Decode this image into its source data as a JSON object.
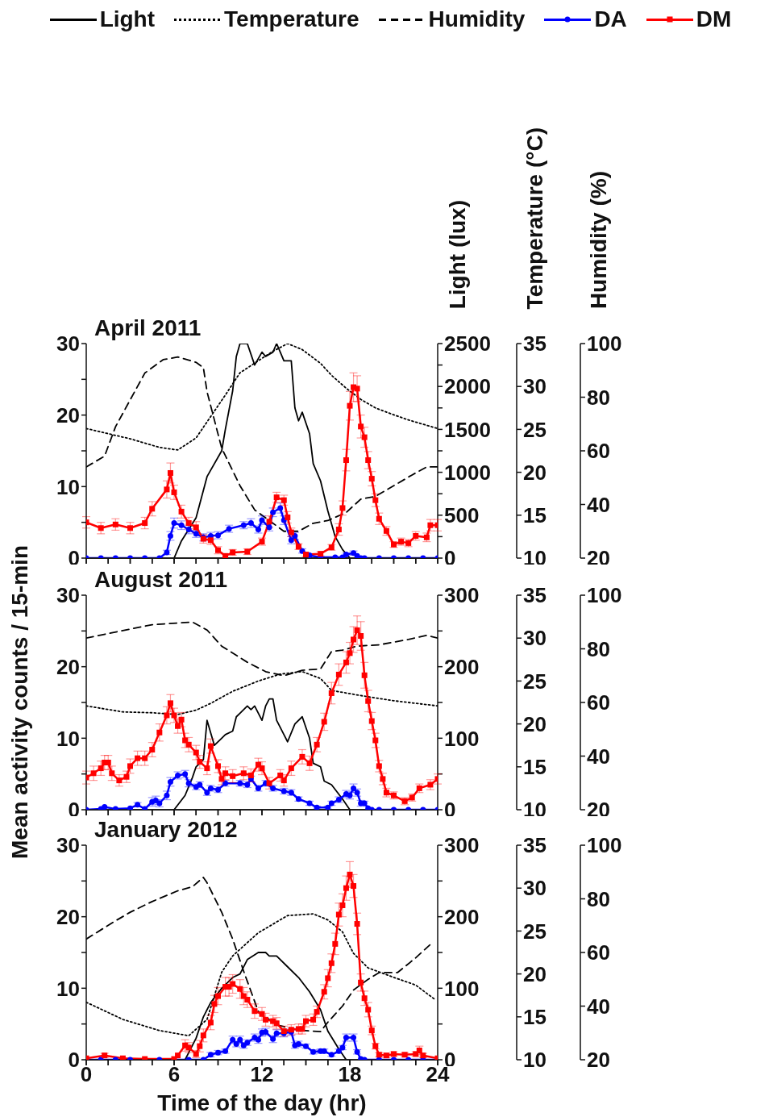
{
  "chart_data": [
    {
      "type": "line",
      "legend": "top",
      "tick_labels": "y",
      "ylabel": "Light (lux)",
      "xlim": [
        0,
        24
      ],
      "xticks": [
        0,
        {
          "value": 1.5,
          "label": null
        },
        {
          "value": 3,
          "label": null
        },
        {
          "value": 4.5,
          "label": null
        },
        {
          "value": 6,
          "label": null
        },
        {
          "value": 7.5,
          "label": null
        },
        {
          "value": 9,
          "label": null
        },
        {
          "value": 10.5,
          "label": null
        },
        {
          "value": 12,
          "label": null
        },
        {
          "value": 13.5,
          "label": null
        },
        {
          "value": 15,
          "label": null
        },
        {
          "value": 16.5,
          "label": null
        },
        {
          "value": 18,
          "label": null
        },
        {
          "value": 19.5,
          "label": null
        },
        {
          "value": 21,
          "label": null
        },
        {
          "value": 22.5,
          "label": null
        },
        {
          "value": 24,
          "label": null
        }
      ],
      "ylim": [
        0,
        2500
      ],
      "yticks": [
        0,
        {
          "value": 250,
          "label": null
        },
        500,
        {
          "value": 750,
          "label": null
        },
        1000,
        {
          "value": 1250,
          "label": null
        },
        1500,
        {
          "value": 1750,
          "label": null
        },
        2000,
        {
          "value": 2250,
          "label": null
        },
        2500
      ],
      "series": [
        {
          "name": "Light",
          "color": "#000000",
          "line_style": "solid",
          "marker": "none",
          "x": [
            6,
            6.5,
            7.5,
            8.25,
            9.25,
            9.5,
            10,
            10.25,
            10.5,
            11,
            11.5,
            12,
            12.25,
            12.75,
            13,
            13.25,
            13.5,
            14,
            14.25,
            14.5,
            14.75,
            15.25,
            15.5,
            16,
            16.5,
            17,
            17.5,
            18
          ],
          "values": [
            0,
            200,
            470,
            950,
            1250,
            1500,
            1950,
            2350,
            2500,
            2500,
            2250,
            2400,
            2350,
            2400,
            2500,
            2400,
            2300,
            2300,
            1750,
            1600,
            1700,
            1450,
            1100,
            900,
            550,
            250,
            100,
            0
          ]
        }
      ]
    },
    {
      "type": "line",
      "title": "April 2011",
      "legend": "top",
      "tick_labels": "y",
      "y2label": "Temperature (°C)",
      "y3label": "Humidity (%)",
      "xlim": [
        0,
        24
      ],
      "xticks": [
        0,
        {
          "value": 1.5,
          "label": null
        },
        {
          "value": 3,
          "label": null
        },
        {
          "value": 4.5,
          "label": null
        },
        {
          "value": 6,
          "label": null
        },
        {
          "value": 7.5,
          "label": null
        },
        {
          "value": 9,
          "label": null
        },
        {
          "value": 10.5,
          "label": null
        },
        {
          "value": 12,
          "label": null
        },
        {
          "value": 13.5,
          "label": null
        },
        {
          "value": 15,
          "label": null
        },
        {
          "value": 16.5,
          "label": null
        },
        {
          "value": 18,
          "label": null
        },
        {
          "value": 19.5,
          "label": null
        },
        {
          "value": 21,
          "label": null
        },
        {
          "value": 22.5,
          "label": null
        },
        {
          "value": 24,
          "label": null
        }
      ],
      "ylim": [
        0,
        30
      ],
      "yticks": [
        0,
        {
          "value": 5,
          "label": null
        },
        10,
        {
          "value": 15,
          "label": null
        },
        20,
        {
          "value": 25,
          "label": null
        },
        30
      ],
      "y2lim": [
        10,
        35
      ],
      "y2ticks": [
        10,
        15,
        20,
        25,
        30,
        35
      ],
      "y3lim": [
        20,
        100
      ],
      "y3ticks": [
        20,
        40,
        60,
        80,
        100
      ],
      "series": [
        {
          "name": "Temperature",
          "color": "#000000",
          "axis": "y2",
          "line_style": "dotted",
          "marker": "none",
          "x": [
            0,
            3,
            5,
            6.25,
            7.5,
            8.5,
            9.5,
            10.5,
            11.75,
            12.75,
            13.75,
            14.75,
            16,
            16.75,
            17.75,
            18.75,
            19.75,
            21,
            22,
            24
          ],
          "values": [
            25.1,
            23.9,
            22.9,
            22.6,
            24.0,
            26.5,
            29.0,
            31.6,
            33.0,
            34.1,
            35.0,
            34.3,
            32.7,
            31.3,
            29.8,
            28.5,
            27.5,
            26.7,
            26.1,
            25.1
          ]
        },
        {
          "name": "Humidity",
          "color": "#000000",
          "axis": "y3",
          "line_style": "dashed",
          "marker": "none",
          "x": [
            0,
            1.25,
            2,
            3,
            4,
            5.25,
            6.25,
            7.5,
            8,
            8.25,
            9.25,
            10.5,
            11.5,
            12.5,
            13.5,
            14.5,
            15.5,
            16.5,
            17.75,
            18.75,
            19.75,
            21,
            22.25,
            23.25,
            24
          ],
          "values": [
            54,
            58,
            69,
            79,
            89,
            94,
            95,
            93,
            91,
            82,
            61,
            47,
            38,
            34,
            30,
            30,
            33,
            34,
            37,
            42,
            43,
            47,
            51,
            54,
            54
          ]
        },
        {
          "name": "DA",
          "color": "#0000ff",
          "axis": "y",
          "line_style": "solid",
          "marker": "circle",
          "x": [
            0,
            1,
            2,
            3,
            4,
            5,
            5.5,
            5.75,
            6,
            6.5,
            7,
            7.5,
            8,
            8.5,
            9,
            9.75,
            10.75,
            11.25,
            11.75,
            12,
            12.5,
            12.75,
            13.25,
            13.5,
            14,
            14.25,
            14.75,
            15.25,
            16,
            17,
            17.5,
            17.75,
            18.25,
            18.5,
            18.75,
            19,
            20,
            21,
            22,
            23,
            24
          ],
          "values": [
            0,
            0,
            0,
            0,
            0,
            0,
            0.8,
            3.1,
            4.9,
            4.6,
            4.0,
            3.4,
            2.9,
            3.1,
            3.2,
            4.1,
            4.6,
            4.9,
            4.0,
            5.3,
            4.3,
            6.4,
            7.0,
            5.3,
            2.5,
            3.1,
            1.0,
            0.4,
            0.1,
            0.1,
            0.1,
            0.5,
            0.7,
            0.3,
            0,
            0,
            0,
            0,
            0,
            0,
            0
          ],
          "errors": [
            null,
            null,
            null,
            null,
            null,
            null,
            0.3,
            0.6,
            0.7,
            0.6,
            0.6,
            0.5,
            0.5,
            0.5,
            0.5,
            0.5,
            0.5,
            0.6,
            0.5,
            0.6,
            0.5,
            0.6,
            0.7,
            0.6,
            0.5,
            0.5,
            0.3,
            0.2,
            null,
            null,
            null,
            0.2,
            0.3,
            null,
            null,
            null,
            null,
            null,
            null,
            null,
            null
          ]
        },
        {
          "name": "DM",
          "color": "#ff0000",
          "axis": "y",
          "line_style": "solid",
          "marker": "square",
          "x": [
            0,
            1,
            2,
            3,
            4,
            4.5,
            5.5,
            5.75,
            6,
            6.5,
            7,
            7.5,
            8,
            8.5,
            9,
            9.5,
            10,
            11,
            12,
            12.5,
            13,
            13.5,
            13.75,
            14,
            14.5,
            15,
            16,
            16.75,
            17.25,
            17.5,
            17.75,
            18,
            18.25,
            18.5,
            18.75,
            19,
            19.25,
            19.5,
            19.75,
            20,
            20.5,
            21,
            21.5,
            22,
            22.5,
            23.25,
            23.5,
            24
          ],
          "values": [
            5.0,
            4.2,
            4.7,
            4.2,
            4.9,
            6.9,
            9.6,
            11.9,
            9.2,
            6.5,
            4.9,
            4.3,
            2.7,
            2.5,
            1.1,
            0.3,
            0.8,
            0.9,
            2.3,
            5.1,
            8.5,
            8.1,
            5.7,
            3.6,
            1.6,
            0.5,
            0.6,
            1.5,
            4.0,
            7.0,
            13.7,
            21.3,
            23.9,
            23.7,
            18.4,
            16.9,
            13.7,
            11.1,
            8.1,
            5.5,
            3.8,
            1.9,
            2.3,
            2.1,
            3.1,
            2.9,
            4.6,
            4.6
          ],
          "errors": [
            0.8,
            0.8,
            0.8,
            0.8,
            0.8,
            1,
            1.2,
            1.4,
            1,
            0.9,
            0.8,
            0.8,
            0.6,
            0.6,
            0.5,
            0.3,
            0.4,
            0.4,
            0.5,
            0.8,
            0.7,
            0.7,
            0.8,
            0.6,
            0.4,
            0.3,
            0.3,
            0.4,
            0.8,
            1,
            1.5,
            2,
            2,
            1.8,
            1.6,
            1.4,
            1.2,
            1,
            0.9,
            0.8,
            0.6,
            0.4,
            0.5,
            0.5,
            0.6,
            0.6,
            0.8,
            0.8
          ]
        }
      ]
    },
    {
      "type": "line",
      "tick_labels": "y",
      "xlim": [
        0,
        24
      ],
      "xticks": [
        0,
        {
          "value": 1.5,
          "label": null
        },
        {
          "value": 3,
          "label": null
        },
        {
          "value": 4.5,
          "label": null
        },
        {
          "value": 6,
          "label": null
        },
        {
          "value": 7.5,
          "label": null
        },
        {
          "value": 9,
          "label": null
        },
        {
          "value": 10.5,
          "label": null
        },
        {
          "value": 12,
          "label": null
        },
        {
          "value": 13.5,
          "label": null
        },
        {
          "value": 15,
          "label": null
        },
        {
          "value": 16.5,
          "label": null
        },
        {
          "value": 18,
          "label": null
        },
        {
          "value": 19.5,
          "label": null
        },
        {
          "value": 21,
          "label": null
        },
        {
          "value": 22.5,
          "label": null
        },
        {
          "value": 24,
          "label": null
        }
      ],
      "ylim": [
        0,
        300
      ],
      "yticks": [
        0,
        {
          "value": 50,
          "label": null
        },
        100,
        {
          "value": 150,
          "label": null
        },
        200,
        {
          "value": 250,
          "label": null
        },
        300
      ],
      "series": [
        {
          "color": "#000000",
          "line_style": "solid",
          "marker": "none",
          "x": [
            6,
            6.75,
            7.25,
            7.5,
            8,
            8.25,
            8.75,
            9.25,
            9.5,
            10,
            10.25,
            10.5,
            11,
            11.25,
            11.5,
            12,
            12.25,
            12.5,
            12.75,
            13,
            13.5,
            13.75,
            14.25,
            14.75,
            15.25,
            15.5,
            16,
            16.25,
            16.75,
            17.5,
            18
          ],
          "values": [
            0,
            20,
            45,
            60,
            70,
            125,
            90,
            100,
            105,
            110,
            130,
            135,
            145,
            140,
            145,
            125,
            145,
            155,
            155,
            125,
            105,
            95,
            120,
            130,
            100,
            65,
            60,
            40,
            35,
            15,
            0
          ]
        }
      ]
    },
    {
      "type": "line",
      "title": "August 2011",
      "tick_labels": "y",
      "ylabel": "Mean activity counts / 15-min",
      "xlim": [
        0,
        24
      ],
      "xticks": [
        0,
        {
          "value": 1.5,
          "label": null
        },
        {
          "value": 3,
          "label": null
        },
        {
          "value": 4.5,
          "label": null
        },
        {
          "value": 6,
          "label": null
        },
        {
          "value": 7.5,
          "label": null
        },
        {
          "value": 9,
          "label": null
        },
        {
          "value": 10.5,
          "label": null
        },
        {
          "value": 12,
          "label": null
        },
        {
          "value": 13.5,
          "label": null
        },
        {
          "value": 15,
          "label": null
        },
        {
          "value": 16.5,
          "label": null
        },
        {
          "value": 18,
          "label": null
        },
        {
          "value": 19.5,
          "label": null
        },
        {
          "value": 21,
          "label": null
        },
        {
          "value": 22.5,
          "label": null
        },
        {
          "value": 24,
          "label": null
        }
      ],
      "ylim": [
        0,
        30
      ],
      "yticks": [
        0,
        {
          "value": 5,
          "label": null
        },
        10,
        {
          "value": 15,
          "label": null
        },
        20,
        {
          "value": 25,
          "label": null
        },
        30
      ],
      "y2lim": [
        10,
        35
      ],
      "y2ticks": [
        10,
        15,
        20,
        25,
        30,
        35
      ],
      "y3lim": [
        20,
        100
      ],
      "y3ticks": [
        20,
        40,
        60,
        80,
        100
      ],
      "series": [
        {
          "color": "#000000",
          "axis": "y2",
          "line_style": "dotted",
          "marker": "none",
          "x": [
            0,
            2.5,
            4.5,
            6.25,
            7.5,
            8.5,
            10,
            11.75,
            13.25,
            14.75,
            16,
            16.75,
            17.75,
            18.75,
            21,
            24
          ],
          "values": [
            22.1,
            21.4,
            21.3,
            21.1,
            21.6,
            22.4,
            23.8,
            25.0,
            25.8,
            26.1,
            25.3,
            23.9,
            23.6,
            23.3,
            22.7,
            22.1
          ]
        },
        {
          "color": "#000000",
          "axis": "y3",
          "line_style": "dashed",
          "marker": "none",
          "x": [
            0,
            1.75,
            4.5,
            7.25,
            8.25,
            9.25,
            11,
            12.25,
            13.5,
            14.75,
            16,
            16.75,
            17.5,
            18.5,
            20,
            22,
            23.25,
            24
          ],
          "values": [
            84,
            86,
            89,
            90,
            87,
            81,
            75,
            71.5,
            70,
            72,
            72.5,
            79,
            79.5,
            81,
            81.5,
            83.5,
            85,
            84
          ]
        },
        {
          "color": "#0000ff",
          "axis": "y",
          "line_style": "solid",
          "marker": "circle",
          "x": [
            0,
            1,
            1.25,
            2,
            3,
            3.5,
            4,
            4.5,
            4.75,
            5,
            5.5,
            5.75,
            6.25,
            6.75,
            7,
            7.5,
            7.75,
            8.25,
            8.5,
            9,
            9.5,
            10.5,
            11,
            11.25,
            11.75,
            12.25,
            12.75,
            13.5,
            14,
            14.5,
            15.25,
            15.75,
            16.5,
            16.75,
            17.25,
            17.75,
            18,
            18.25,
            18.5,
            18.75,
            19,
            19.25,
            19.5,
            20,
            21,
            22,
            23,
            24
          ],
          "values": [
            0,
            0.1,
            0.4,
            0.1,
            0.2,
            0.7,
            0.1,
            1.1,
            1.3,
            0.9,
            2.0,
            3.9,
            4.8,
            5.0,
            3.7,
            3.2,
            3.5,
            2.4,
            3.0,
            2.8,
            3.7,
            3.7,
            3.5,
            4.3,
            3.0,
            3.7,
            3.0,
            2.6,
            2.4,
            1.5,
            0.9,
            0.3,
            0.3,
            0.9,
            1.4,
            2.2,
            2.0,
            3.0,
            2.4,
            0.9,
            0.9,
            0.2,
            0,
            0,
            0,
            0,
            0,
            0
          ],
          "errors": [
            null,
            null,
            null,
            null,
            null,
            0.3,
            null,
            0.6,
            0.6,
            0.5,
            0.6,
            0.6,
            0.5,
            0.5,
            0.5,
            0.4,
            0.4,
            0.4,
            0.4,
            0.4,
            0.4,
            0.4,
            0.4,
            0.4,
            0.4,
            0.4,
            0.4,
            0.4,
            0.4,
            0.3,
            0.3,
            0.2,
            0.2,
            0.3,
            0.4,
            0.5,
            0.5,
            0.6,
            0.5,
            0.4,
            0.3,
            null,
            null,
            null,
            null,
            null,
            null,
            null
          ]
        },
        {
          "color": "#ff0000",
          "axis": "y",
          "line_style": "solid",
          "marker": "square",
          "x": [
            0,
            0.5,
            1,
            1.25,
            1.5,
            1.75,
            2.25,
            2.75,
            3,
            3.5,
            4,
            4.5,
            5,
            5.5,
            5.75,
            6,
            6.25,
            6.5,
            6.75,
            7,
            7.5,
            7.75,
            8.25,
            8.5,
            9,
            9.25,
            9.5,
            10,
            10.75,
            11.25,
            11.75,
            12,
            12.5,
            13.25,
            13.5,
            14,
            14.75,
            15.25,
            15.75,
            16.25,
            16.75,
            17.25,
            17.75,
            18,
            18.25,
            18.5,
            18.75,
            19,
            19.25,
            19.5,
            19.75,
            20,
            20.25,
            20.5,
            21,
            21.75,
            22.25,
            22.75,
            23.5,
            24
          ],
          "values": [
            4.5,
            5.1,
            5.8,
            6.6,
            6.6,
            5.1,
            4.1,
            4.6,
            6.1,
            7.2,
            7.2,
            8.4,
            10.8,
            13.2,
            14.9,
            13.2,
            11.7,
            12.6,
            9.7,
            9.1,
            8.0,
            6.7,
            5.8,
            8.9,
            6.1,
            4.3,
            5.1,
            4.7,
            5.1,
            4.8,
            6.3,
            5.8,
            3.7,
            4.8,
            4.1,
            5.8,
            7.4,
            6.5,
            9.1,
            12.3,
            16.3,
            18.9,
            20.6,
            21.9,
            23.8,
            25.1,
            24.3,
            18.8,
            15.2,
            12.4,
            9.7,
            6.1,
            4.3,
            2.4,
            2.0,
            1.2,
            1.7,
            3.0,
            3.5,
            4.3
          ],
          "errors": [
            0.9,
            1,
            1,
            1,
            1,
            1,
            0.8,
            0.8,
            1,
            1,
            1,
            1,
            1.2,
            1.2,
            1.2,
            1,
            1,
            1,
            1,
            1,
            1,
            0.9,
            0.9,
            1,
            0.9,
            0.8,
            0.9,
            0.9,
            0.9,
            0.9,
            0.9,
            0.9,
            0.8,
            0.8,
            0.8,
            1,
            1,
            1,
            1,
            1.2,
            1.5,
            1.5,
            1.5,
            1.5,
            1.8,
            2,
            2,
            1.8,
            1.5,
            1.2,
            1,
            0.8,
            0.8,
            0.6,
            0.5,
            0.5,
            0.5,
            0.6,
            0.7,
            0.7
          ]
        }
      ]
    },
    {
      "type": "line",
      "tick_labels": "y",
      "xlim": [
        0,
        24
      ],
      "xticks": [
        0,
        {
          "value": 1.5,
          "label": null
        },
        {
          "value": 3,
          "label": null
        },
        {
          "value": 4.5,
          "label": null
        },
        6,
        {
          "value": 7.5,
          "label": null
        },
        {
          "value": 9,
          "label": null
        },
        {
          "value": 10.5,
          "label": null
        },
        12,
        {
          "value": 13.5,
          "label": null
        },
        {
          "value": 15,
          "label": null
        },
        {
          "value": 16.5,
          "label": null
        },
        18,
        {
          "value": 19.5,
          "label": null
        },
        {
          "value": 21,
          "label": null
        },
        {
          "value": 22.5,
          "label": null
        },
        24
      ],
      "ylim": [
        0,
        300
      ],
      "yticks": [
        0,
        {
          "value": 50,
          "label": null
        },
        100,
        {
          "value": 150,
          "label": null
        },
        200,
        {
          "value": 250,
          "label": null
        },
        300
      ],
      "series": [
        {
          "color": "#000000",
          "line_style": "solid",
          "marker": "none",
          "x": [
            6.75,
            7.5,
            8,
            8.5,
            9.25,
            10,
            10.5,
            11,
            11.75,
            12.25,
            12.5,
            13,
            13.75,
            14.5,
            15.25,
            16,
            16.5,
            17.25,
            17.75
          ],
          "values": [
            0,
            30,
            60,
            80,
            100,
            115,
            120,
            140,
            150,
            150,
            145,
            145,
            130,
            115,
            95,
            70,
            40,
            15,
            0
          ]
        }
      ]
    },
    {
      "type": "line",
      "title": "January 2012",
      "xlabel": "Time of the day (hr)",
      "xlim": [
        0,
        24
      ],
      "xticks": [
        0,
        {
          "value": 1.5,
          "label": null
        },
        {
          "value": 3,
          "label": null
        },
        {
          "value": 4.5,
          "label": null
        },
        6,
        {
          "value": 7.5,
          "label": null
        },
        {
          "value": 9,
          "label": null
        },
        {
          "value": 10.5,
          "label": null
        },
        12,
        {
          "value": 13.5,
          "label": null
        },
        {
          "value": 15,
          "label": null
        },
        {
          "value": 16.5,
          "label": null
        },
        18,
        {
          "value": 19.5,
          "label": null
        },
        {
          "value": 21,
          "label": null
        },
        {
          "value": 22.5,
          "label": null
        },
        24
      ],
      "ylim": [
        0,
        30
      ],
      "yticks": [
        0,
        {
          "value": 5,
          "label": null
        },
        10,
        {
          "value": 15,
          "label": null
        },
        20,
        {
          "value": 25,
          "label": null
        },
        30
      ],
      "y2lim": [
        10,
        35
      ],
      "y2ticks": [
        10,
        15,
        20,
        25,
        30,
        35
      ],
      "y3lim": [
        20,
        100
      ],
      "y3ticks": [
        20,
        40,
        60,
        80,
        100
      ],
      "series": [
        {
          "color": "#000000",
          "axis": "y2",
          "line_style": "dotted",
          "marker": "none",
          "x": [
            0,
            2.5,
            5,
            7,
            8.25,
            9.25,
            10,
            11.75,
            13.75,
            15.5,
            16.5,
            17.5,
            18.25,
            19.25,
            21,
            22.5,
            23.75
          ],
          "values": [
            16.7,
            14.7,
            13.4,
            12.8,
            14.7,
            20.2,
            22.1,
            24.8,
            26.8,
            27.0,
            26.3,
            24.9,
            22.4,
            20.7,
            19.6,
            18.7,
            17.1
          ]
        },
        {
          "color": "#000000",
          "axis": "y3",
          "line_style": "dashed",
          "marker": "none",
          "x": [
            0,
            1.75,
            3,
            4.5,
            6.25,
            7.25,
            8,
            8.25,
            9.25,
            10,
            10.75,
            11.75,
            13,
            13.75,
            14.5,
            16,
            16.5,
            17.5,
            18.25,
            19.25,
            20,
            21.25,
            22.5,
            23.5
          ],
          "values": [
            65,
            71,
            75,
            79,
            83,
            84.5,
            88,
            86,
            75,
            65,
            53,
            38,
            33,
            32,
            31,
            30.5,
            34,
            40,
            46,
            50,
            52.5,
            52.5,
            58,
            63
          ]
        },
        {
          "color": "#0000ff",
          "axis": "y",
          "line_style": "solid",
          "marker": "circle",
          "x": [
            0,
            1,
            2,
            3,
            4,
            5,
            6,
            7,
            8,
            8.5,
            9,
            9.5,
            10,
            10.25,
            10.5,
            10.75,
            11,
            11.5,
            11.75,
            12,
            12.25,
            12.75,
            13,
            13.5,
            14,
            14.25,
            14.5,
            15,
            15.5,
            16,
            16.25,
            16.75,
            17.25,
            17.5,
            17.75,
            18.25,
            18.5,
            18.75,
            19,
            20,
            21,
            22,
            23,
            24
          ],
          "values": [
            0,
            0,
            0,
            0,
            0,
            0,
            0,
            0,
            0,
            0.7,
            1.0,
            1.2,
            2.8,
            2.2,
            2.8,
            2.0,
            2.4,
            3.1,
            2.8,
            3.8,
            3.9,
            2.9,
            3.7,
            3.7,
            3.9,
            2.0,
            2.2,
            1.9,
            1.1,
            1.2,
            1.2,
            0.7,
            1.2,
            1.7,
            3.1,
            3.1,
            1.1,
            0.1,
            0,
            0,
            0,
            0,
            0,
            0
          ],
          "errors": [
            null,
            null,
            null,
            null,
            null,
            null,
            null,
            null,
            null,
            0.3,
            0.3,
            0.3,
            0.5,
            0.4,
            0.5,
            0.4,
            0.4,
            0.5,
            0.5,
            0.5,
            0.5,
            0.5,
            0.5,
            0.5,
            0.5,
            0.4,
            0.4,
            0.3,
            0.3,
            0.3,
            0.3,
            0.2,
            0.3,
            0.3,
            0.5,
            0.5,
            0.3,
            null,
            null,
            null,
            null,
            null,
            null,
            null
          ]
        },
        {
          "color": "#ff0000",
          "axis": "y",
          "line_style": "solid",
          "marker": "square",
          "x": [
            0,
            1.25,
            2.5,
            4,
            6,
            6.25,
            6.75,
            7,
            7.5,
            7.75,
            8,
            8.5,
            8.75,
            9,
            9.5,
            9.75,
            10,
            10.5,
            10.75,
            11,
            11.5,
            12,
            12.25,
            12.75,
            13,
            13.5,
            14,
            14.5,
            14.75,
            15,
            15.5,
            15.75,
            16.25,
            16.5,
            16.75,
            17,
            17.25,
            17.5,
            17.75,
            18,
            18.25,
            18.5,
            18.75,
            19,
            19.25,
            19.5,
            19.75,
            20,
            20.5,
            21,
            21.75,
            22.5,
            22.75,
            23,
            24
          ],
          "values": [
            0.2,
            0.6,
            0.2,
            0.1,
            0.1,
            0.6,
            2.0,
            1.7,
            0.8,
            1.9,
            3.4,
            5.2,
            7.8,
            8.9,
            10.2,
            10.2,
            10.6,
            9.9,
            8.9,
            8.4,
            6.8,
            6.4,
            5.6,
            5.4,
            5.1,
            4.0,
            4.2,
            4.3,
            4.3,
            5.4,
            5.6,
            6.7,
            9.5,
            11.4,
            13.5,
            16.2,
            20.3,
            21.6,
            24.0,
            25.9,
            24.3,
            19.0,
            10.8,
            8.6,
            7.0,
            4.1,
            1.9,
            0.7,
            0.6,
            0.8,
            0.7,
            0.8,
            1.3,
            0.6,
            0.2
          ],
          "errors": [
            null,
            0.3,
            null,
            null,
            null,
            null,
            0.8,
            0.7,
            0.5,
            0.8,
            0.9,
            1,
            1.2,
            1.2,
            1.3,
            1.3,
            1.3,
            1.3,
            1.2,
            1.1,
            1,
            0.9,
            0.9,
            0.8,
            0.8,
            0.7,
            0.7,
            0.7,
            0.7,
            0.8,
            0.8,
            0.8,
            1,
            1.2,
            1.3,
            1.5,
            1.6,
            1.6,
            1.7,
            1.8,
            1.6,
            1.5,
            1.2,
            1,
            1,
            0.6,
            0.4,
            0.3,
            0.3,
            0.3,
            0.3,
            0.3,
            0.6,
            0.3,
            null
          ]
        }
      ]
    }
  ]
}
